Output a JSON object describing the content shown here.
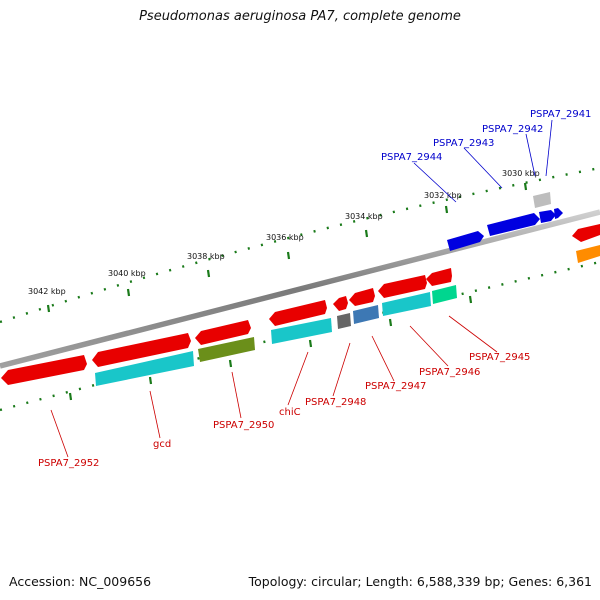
{
  "title": "Pseudomonas aeruginosa PA7, complete genome",
  "footer": {
    "accession": "Accession: NC_009656",
    "topology": "Topology: circular; Length: 6,588,339 bp; Genes: 6,361"
  },
  "colors": {
    "backbone": "#808080",
    "tick": "#1a7a1a",
    "forward_label": "#0000cc",
    "reverse_label": "#cc0000",
    "red": "#e80000",
    "cyan": "#19c6c9",
    "blue": "#0000e0",
    "olive": "#6b8f1a",
    "gray": "#666666",
    "steel": "#3d78b4",
    "spring": "#00d68f",
    "orange": "#ff8c00",
    "light_gray": "#bdbdbd"
  },
  "ruler_labels": [
    "3030 kbp",
    "3032 kbp",
    "3034 kbp",
    "3036 kbp",
    "3038 kbp",
    "3040 kbp",
    "3042 kbp"
  ],
  "gene_labels_top": [
    "PSPA7_2941",
    "PSPA7_2942",
    "PSPA7_2943",
    "PSPA7_2944"
  ],
  "gene_labels_bottom": [
    "PSPA7_2945",
    "PSPA7_2946",
    "PSPA7_2947",
    "PSPA7_2948",
    "chiC",
    "PSPA7_2950",
    "gcd",
    "PSPA7_2952"
  ]
}
